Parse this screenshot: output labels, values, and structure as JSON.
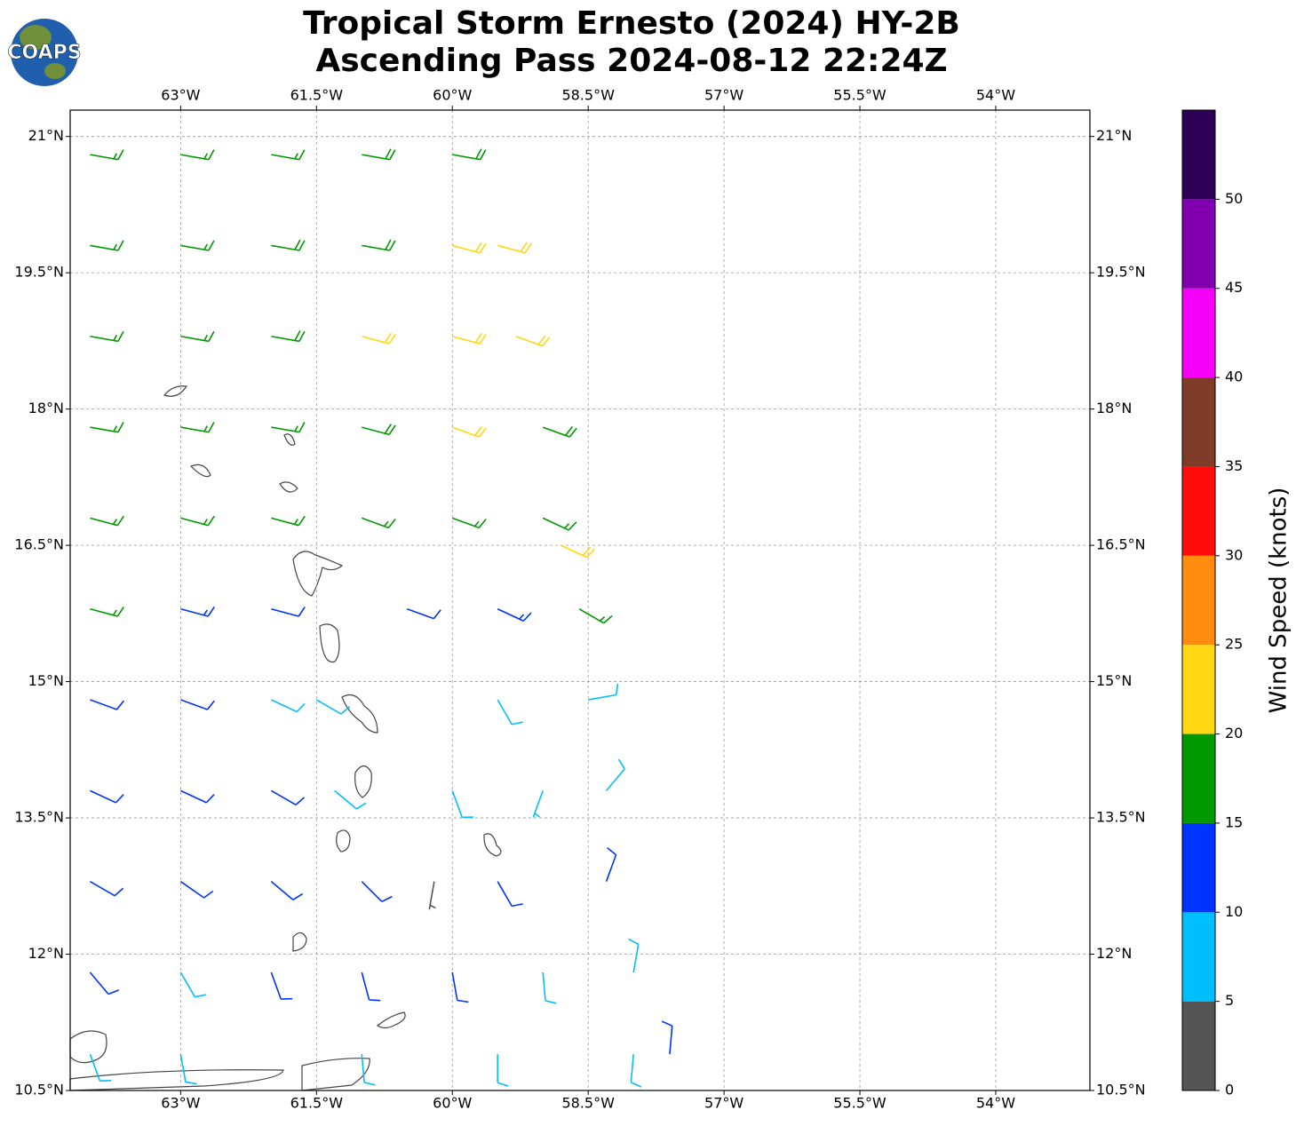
{
  "chart_data": {
    "type": "wind-barb-map",
    "title": "Tropical Storm Ernesto (2024) HY-2B",
    "subtitle": "Ascending Pass 2024-08-12 22:24Z",
    "logo": "COAPS",
    "xlim": [
      -64.22,
      -52.96
    ],
    "ylim": [
      10.5,
      21.29
    ],
    "grid": true,
    "xticks": [
      {
        "value": -63,
        "label": "63°W"
      },
      {
        "value": -61.5,
        "label": "61.5°W"
      },
      {
        "value": -60,
        "label": "60°W"
      },
      {
        "value": -58.5,
        "label": "58.5°W"
      },
      {
        "value": -57,
        "label": "57°W"
      },
      {
        "value": -55.5,
        "label": "55.5°W"
      },
      {
        "value": -54,
        "label": "54°W"
      }
    ],
    "yticks": [
      {
        "value": 10.5,
        "label": "10.5°N"
      },
      {
        "value": 12,
        "label": "12°N"
      },
      {
        "value": 13.5,
        "label": "13.5°N"
      },
      {
        "value": 15,
        "label": "15°N"
      },
      {
        "value": 16.5,
        "label": "16.5°N"
      },
      {
        "value": 18,
        "label": "18°N"
      },
      {
        "value": 19.5,
        "label": "19.5°N"
      },
      {
        "value": 21,
        "label": "21°N"
      }
    ],
    "colorbar": {
      "label": "Wind Speed (knots)",
      "lim": [
        0,
        55
      ],
      "ticks": [
        0,
        5,
        10,
        15,
        20,
        25,
        30,
        35,
        40,
        45,
        50
      ],
      "colors": [
        "#555555",
        "#00bfff",
        "#0033ff",
        "#009900",
        "#ffd712",
        "#ff8c0e",
        "#ff0d0d",
        "#7f3c28",
        "#f700f7",
        "#8000b0",
        "#2e0055"
      ]
    },
    "barbs": [
      [
        -64,
        20.8,
        17,
        100
      ],
      [
        -63,
        20.8,
        17,
        100
      ],
      [
        -62,
        20.8,
        17,
        100
      ],
      [
        -61,
        20.8,
        18,
        100
      ],
      [
        -60,
        20.8,
        18,
        100
      ],
      [
        -64,
        19.8,
        17,
        100
      ],
      [
        -63,
        19.8,
        17,
        100
      ],
      [
        -62,
        19.8,
        18,
        100
      ],
      [
        -61,
        19.8,
        18,
        100
      ],
      [
        -60,
        19.8,
        21,
        105
      ],
      [
        -59.5,
        19.8,
        22,
        105
      ],
      [
        -64,
        18.8,
        17,
        100
      ],
      [
        -63,
        18.8,
        17,
        100
      ],
      [
        -62,
        18.8,
        18,
        100
      ],
      [
        -61,
        18.8,
        21,
        105
      ],
      [
        -60,
        18.8,
        22,
        105
      ],
      [
        -59.3,
        18.8,
        22,
        110
      ],
      [
        -64,
        17.8,
        16,
        100
      ],
      [
        -63,
        17.8,
        17,
        100
      ],
      [
        -62,
        17.8,
        16,
        100
      ],
      [
        -61,
        17.8,
        18,
        105
      ],
      [
        -60,
        17.8,
        21,
        110
      ],
      [
        -59,
        17.8,
        18,
        110
      ],
      [
        -64,
        16.8,
        17,
        105
      ],
      [
        -63,
        16.8,
        17,
        105
      ],
      [
        -62,
        16.8,
        16,
        105
      ],
      [
        -61,
        16.8,
        17,
        110
      ],
      [
        -60,
        16.8,
        17,
        110
      ],
      [
        -59,
        16.8,
        17,
        115
      ],
      [
        -58.8,
        16.5,
        22,
        115
      ],
      [
        -64,
        15.8,
        16,
        105
      ],
      [
        -63,
        15.8,
        13,
        105
      ],
      [
        -62,
        15.8,
        12,
        105
      ],
      [
        -60.5,
        15.8,
        12,
        110
      ],
      [
        -59.5,
        15.8,
        13,
        115
      ],
      [
        -58.6,
        15.8,
        16,
        120
      ],
      [
        -64,
        14.8,
        12,
        110
      ],
      [
        -63,
        14.8,
        12,
        110
      ],
      [
        -62,
        14.8,
        9,
        115
      ],
      [
        -61.5,
        14.8,
        8,
        120
      ],
      [
        -59.5,
        14.8,
        8,
        150
      ],
      [
        -58.5,
        14.8,
        8,
        80
      ],
      [
        -64,
        13.8,
        12,
        115
      ],
      [
        -63,
        13.8,
        12,
        115
      ],
      [
        -62,
        13.8,
        12,
        120
      ],
      [
        -61.3,
        13.8,
        9,
        130
      ],
      [
        -60,
        13.8,
        8,
        160
      ],
      [
        -59,
        13.8,
        6,
        200
      ],
      [
        -58.3,
        13.8,
        8,
        40
      ],
      [
        -64,
        12.8,
        12,
        120
      ],
      [
        -63,
        12.8,
        12,
        125
      ],
      [
        -62,
        12.8,
        12,
        130
      ],
      [
        -61,
        12.8,
        12,
        135
      ],
      [
        -60.2,
        12.8,
        3,
        190
      ],
      [
        -59.5,
        12.8,
        12,
        150
      ],
      [
        -58.3,
        12.8,
        12,
        20
      ],
      [
        -64,
        11.8,
        11,
        140
      ],
      [
        -63,
        11.8,
        9,
        150
      ],
      [
        -62,
        11.8,
        11,
        160
      ],
      [
        -61,
        11.8,
        12,
        165
      ],
      [
        -60,
        11.8,
        12,
        170
      ],
      [
        -59,
        11.8,
        9,
        175
      ],
      [
        -58,
        11.8,
        9,
        10
      ],
      [
        -64,
        10.9,
        8,
        160
      ],
      [
        -63,
        10.9,
        8,
        170
      ],
      [
        -61,
        10.9,
        9,
        175
      ],
      [
        -59.5,
        10.9,
        8,
        180
      ],
      [
        -58,
        10.9,
        8,
        185
      ],
      [
        -57.6,
        10.9,
        12,
        5
      ]
    ]
  }
}
